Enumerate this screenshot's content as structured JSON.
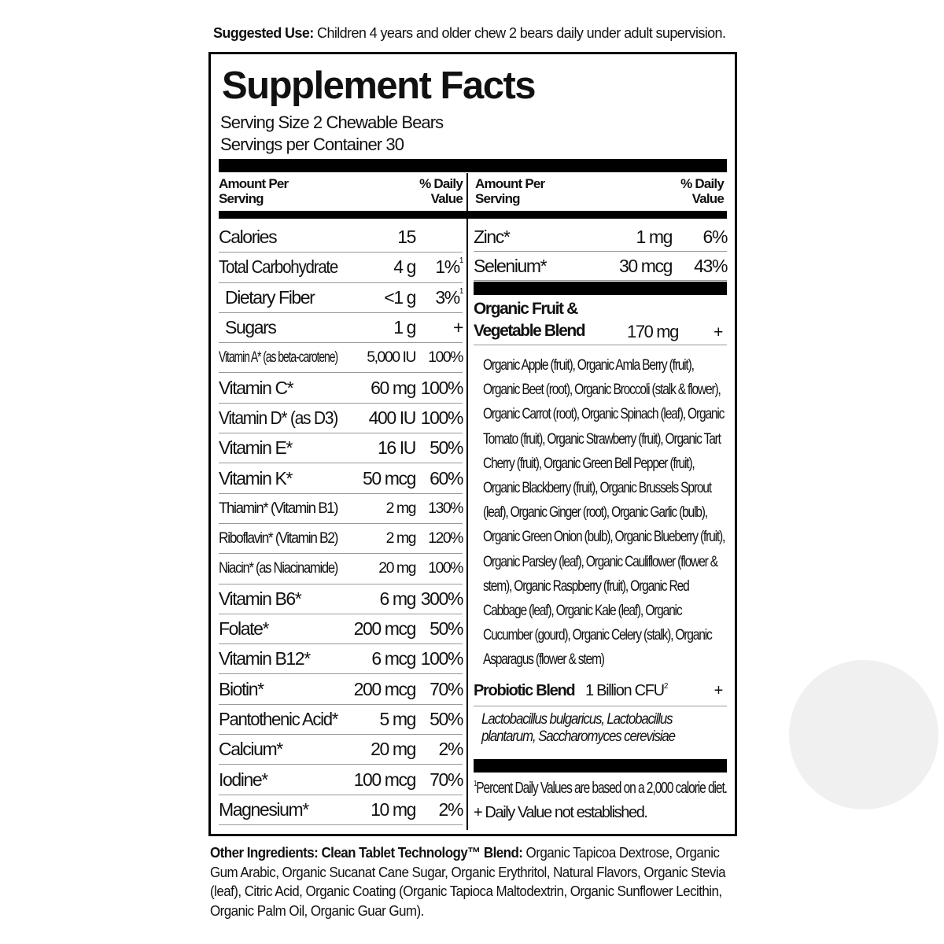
{
  "suggested_use": {
    "label": "Suggested Use:",
    "text": " Children 4 years and older chew 2 bears daily under adult supervision."
  },
  "title": "Supplement Facts",
  "serving_size": "Serving Size 2 Chewable Bears",
  "servings_per_container": "Servings per Container 30",
  "header": {
    "amount_line1": "Amount Per",
    "amount_line2": "Serving",
    "dv_line1": "% Daily",
    "dv_line2": "Value"
  },
  "left_rows": [
    {
      "name": "Calories",
      "amount": "15",
      "dv": ""
    },
    {
      "name": "Total Carbohydrate",
      "amount": "4 g",
      "dv": "1%",
      "sup": "1"
    },
    {
      "name": "Dietary Fiber",
      "amount": "<1 g",
      "dv": "3%",
      "sup": "1",
      "indent": true
    },
    {
      "name": "Sugars",
      "amount": "1 g",
      "dv": "+",
      "indent": true
    },
    {
      "name": "Vitamin A* (as beta-carotene)",
      "amount": "5,000 IU",
      "dv": "100%",
      "small": true
    },
    {
      "name": "Vitamin C*",
      "amount": "60 mg",
      "dv": "100%"
    },
    {
      "name": "Vitamin D* (as D3)",
      "amount": "400 IU",
      "dv": "100%"
    },
    {
      "name": "Vitamin E*",
      "amount": "16 IU",
      "dv": "50%"
    },
    {
      "name": "Vitamin K*",
      "amount": "50 mcg",
      "dv": "60%"
    },
    {
      "name": "Thiamin* (Vitamin B1)",
      "amount": "2 mg",
      "dv": "130%",
      "small": true
    },
    {
      "name": "Riboflavin* (Vitamin B2)",
      "amount": "2 mg",
      "dv": "120%",
      "small": true
    },
    {
      "name": "Niacin* (as Niacinamide)",
      "amount": "20 mg",
      "dv": "100%",
      "small": true
    },
    {
      "name": "Vitamin B6*",
      "amount": "6 mg",
      "dv": "300%"
    },
    {
      "name": "Folate*",
      "amount": "200 mcg",
      "dv": "50%"
    },
    {
      "name": "Vitamin B12*",
      "amount": "6 mcg",
      "dv": "100%"
    },
    {
      "name": "Biotin*",
      "amount": "200 mcg",
      "dv": "70%"
    },
    {
      "name": "Pantothenic Acid*",
      "amount": "5 mg",
      "dv": "50%"
    },
    {
      "name": "Calcium*",
      "amount": "20 mg",
      "dv": "2%"
    },
    {
      "name": "Iodine*",
      "amount": "100 mcg",
      "dv": "70%"
    },
    {
      "name": "Magnesium*",
      "amount": "10 mg",
      "dv": "2%"
    }
  ],
  "right_rows": [
    {
      "name": "Zinc*",
      "amount": "1 mg",
      "dv": "6%"
    },
    {
      "name": "Selenium*",
      "amount": "30 mcg",
      "dv": "43%"
    }
  ],
  "blend": {
    "name_line1": "Organic Fruit &",
    "name_line2": "Vegetable Blend",
    "amount": "170 mg",
    "dv": "+",
    "ingredients": "Organic Apple (fruit), Organic Amla Berry (fruit), Organic Beet (root), Organic Broccoli (stalk & flower), Organic Carrot (root), Organic Spinach (leaf), Organic Tomato (fruit), Organic Strawberry (fruit), Organic Tart Cherry (fruit), Organic Green Bell Pepper (fruit), Organic Blackberry (fruit), Organic Brussels Sprout (leaf), Organic Ginger (root), Organic Garlic (bulb), Organic Green Onion (bulb), Organic Blueberry (fruit), Organic Parsley (leaf), Organic Cauliflower (flower & stem), Organic Raspberry (fruit), Organic Red Cabbage (leaf), Organic Kale (leaf), Organic Cucumber (gourd), Organic Celery (stalk), Organic Asparagus (flower & stem)"
  },
  "probiotic": {
    "name": "Probiotic Blend",
    "amount": "1 Billion CFU",
    "sup": "2",
    "dv": "+",
    "strains": "Lactobacillus bulgaricus, Lactobacillus plantarum, Saccharomyces cerevisiae"
  },
  "footnotes": {
    "sup": "1",
    "note1": "Percent Daily Values are based on a 2,000 calorie diet.",
    "note2": "+ Daily Value not established."
  },
  "other_ingredients": {
    "label": "Other Ingredients: Clean Tablet Technology™ Blend:",
    "text": " Organic Tapicoa Dextrose, Organic Gum Arabic, Organic Sucanat Cane Sugar, Organic Erythritol, Natural Flavors, Organic Stevia (leaf), Citric Acid, Organic Coating (Organic Tapioca Maltodextrin, Organic Sunflower Lecithin, Organic Palm Oil, Organic Guar Gum)."
  }
}
